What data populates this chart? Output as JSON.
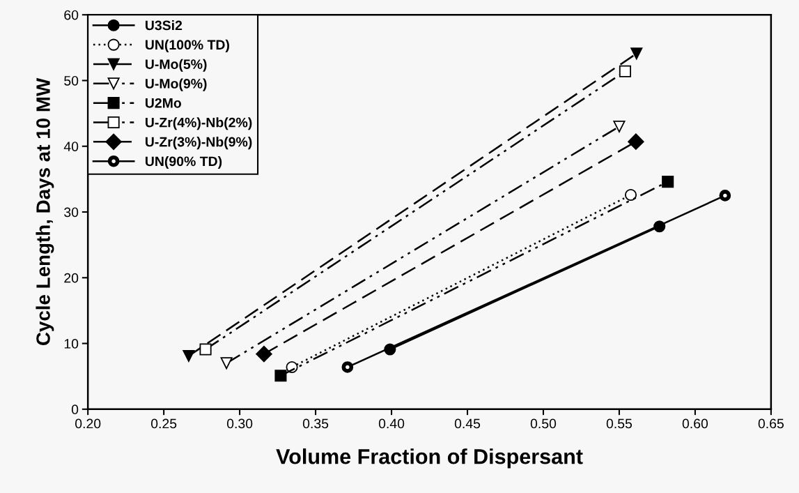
{
  "chart_data": {
    "type": "line",
    "xlabel": "Volume Fraction of Dispersant",
    "ylabel": "Cycle Length, Days at 10 MW",
    "xlim": [
      0.2,
      0.65
    ],
    "xticks": [
      {
        "value": 0.2,
        "label": "0.20"
      },
      {
        "value": 0.25,
        "label": "0.25"
      },
      {
        "value": 0.3,
        "label": "0.30"
      },
      {
        "value": 0.35,
        "label": "0.35"
      },
      {
        "value": 0.4,
        "label": "0.40"
      },
      {
        "value": 0.45,
        "label": "0.45"
      },
      {
        "value": 0.5,
        "label": "0.50"
      },
      {
        "value": 0.55,
        "label": "0.55"
      },
      {
        "value": 0.6,
        "label": "0.60"
      },
      {
        "value": 0.65,
        "label": "0.65"
      }
    ],
    "ylim": [
      0,
      60
    ],
    "yticks": [
      0,
      10,
      20,
      30,
      40,
      50,
      60
    ],
    "grid": false,
    "legend": "top left",
    "series": [
      {
        "name": "U3Si2",
        "color": "#000000",
        "marker": "circle",
        "line_style": "solid",
        "x": [
          0.399,
          0.5765
        ],
        "values": [
          9.1,
          27.8
        ]
      },
      {
        "name": "UN(100% TD)",
        "color": "#000000",
        "marker": "circle-open",
        "line_style": "dotted",
        "x": [
          0.3344,
          0.5576
        ],
        "values": [
          6.4,
          32.6
        ]
      },
      {
        "name": "U-Mo(5%)",
        "color": "#000000",
        "marker": "triangle",
        "line_style": "dashed",
        "x": [
          0.2664,
          0.5614
        ],
        "values": [
          8.1,
          54.1
        ]
      },
      {
        "name": "U-Mo(9%)",
        "color": "#000000",
        "marker": "triangle-open",
        "line_style": "dashdot",
        "x": [
          0.2913,
          0.55
        ],
        "values": [
          7.0,
          43.0
        ]
      },
      {
        "name": "U2Mo",
        "color": "#000000",
        "marker": "square",
        "line_style": "dashdot",
        "x": [
          0.327,
          0.582
        ],
        "values": [
          5.1,
          34.6
        ]
      },
      {
        "name": "U-Zr(4%)-Nb(2%)",
        "color": "#000000",
        "marker": "square-open",
        "line_style": "dashdot",
        "x": [
          0.2775,
          0.5539
        ],
        "values": [
          9.1,
          51.4
        ]
      },
      {
        "name": "U-Zr(3%)-Nb(9%)",
        "color": "#000000",
        "marker": "diamond",
        "line_style": "dashed",
        "x": [
          0.316,
          0.561
        ],
        "values": [
          8.4,
          40.7
        ]
      },
      {
        "name": "UN(90% TD)",
        "color": "#000000",
        "marker": "circle-dot",
        "line_style": "solid",
        "x": [
          0.371,
          0.6197
        ],
        "values": [
          6.4,
          32.5
        ]
      }
    ]
  }
}
